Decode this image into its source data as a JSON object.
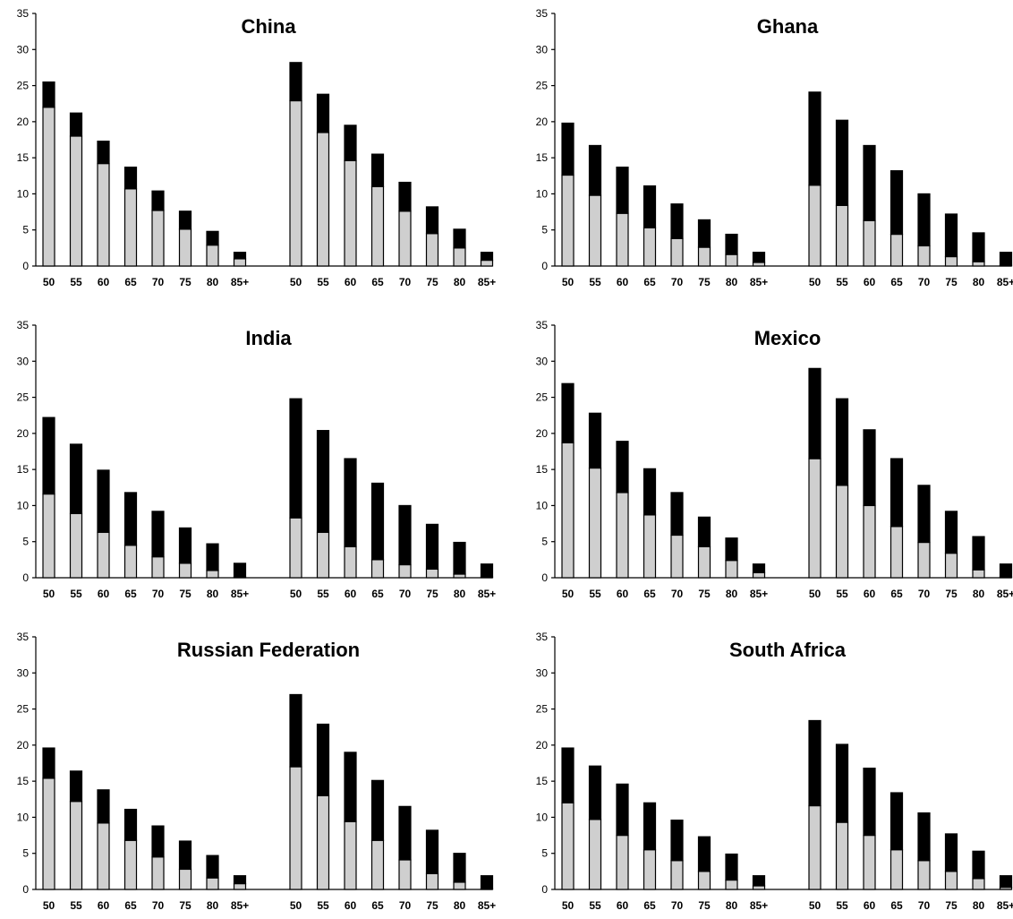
{
  "chart_data": [
    {
      "type": "bar",
      "stacked": true,
      "title": "China",
      "ylim": [
        0,
        35
      ],
      "yticks": [
        0,
        5,
        10,
        15,
        20,
        25,
        30,
        35
      ],
      "groups": [
        {
          "categories": [
            "50",
            "55",
            "60",
            "65",
            "70",
            "75",
            "80",
            "85+"
          ],
          "series": [
            {
              "values": [
                22,
                18,
                14.2,
                10.7,
                7.7,
                5.1,
                2.9,
                1.0
              ],
              "color": "#cfcfcf"
            },
            {
              "values": [
                3.5,
                3.2,
                3.1,
                3.0,
                2.7,
                2.5,
                1.9,
                0.9
              ],
              "color": "#000000"
            }
          ]
        },
        {
          "categories": [
            "50",
            "55",
            "60",
            "65",
            "70",
            "75",
            "80",
            "85+"
          ],
          "series": [
            {
              "values": [
                22.9,
                18.5,
                14.6,
                11.0,
                7.6,
                4.5,
                2.5,
                0.8
              ],
              "color": "#cfcfcf"
            },
            {
              "values": [
                5.3,
                5.3,
                4.9,
                4.5,
                4.0,
                3.7,
                2.6,
                1.1
              ],
              "color": "#000000"
            }
          ]
        }
      ]
    },
    {
      "type": "bar",
      "stacked": true,
      "title": "Ghana",
      "ylim": [
        0,
        35
      ],
      "yticks": [
        0,
        5,
        10,
        15,
        20,
        25,
        30,
        35
      ],
      "groups": [
        {
          "categories": [
            "50",
            "55",
            "60",
            "65",
            "70",
            "75",
            "80",
            "85+"
          ],
          "series": [
            {
              "values": [
                12.6,
                9.8,
                7.3,
                5.3,
                3.8,
                2.6,
                1.6,
                0.5
              ],
              "color": "#cfcfcf"
            },
            {
              "values": [
                7.2,
                6.9,
                6.4,
                5.8,
                4.8,
                3.8,
                2.8,
                1.4
              ],
              "color": "#000000"
            }
          ]
        },
        {
          "categories": [
            "50",
            "55",
            "60",
            "65",
            "70",
            "75",
            "80",
            "85+"
          ],
          "series": [
            {
              "values": [
                11.2,
                8.4,
                6.3,
                4.4,
                2.8,
                1.3,
                0.6,
                0.1
              ],
              "color": "#cfcfcf"
            },
            {
              "values": [
                12.9,
                11.8,
                10.4,
                8.8,
                7.2,
                5.9,
                4.0,
                1.8
              ],
              "color": "#000000"
            }
          ]
        }
      ]
    },
    {
      "type": "bar",
      "stacked": true,
      "title": "India",
      "ylim": [
        0,
        35
      ],
      "yticks": [
        0,
        5,
        10,
        15,
        20,
        25,
        30,
        35
      ],
      "groups": [
        {
          "categories": [
            "50",
            "55",
            "60",
            "65",
            "70",
            "75",
            "80",
            "85+"
          ],
          "series": [
            {
              "values": [
                11.6,
                8.9,
                6.3,
                4.5,
                2.9,
                2.0,
                1.0,
                0.1
              ],
              "color": "#cfcfcf"
            },
            {
              "values": [
                10.6,
                9.6,
                8.6,
                7.3,
                6.3,
                4.9,
                3.7,
                1.9
              ],
              "color": "#000000"
            }
          ]
        },
        {
          "categories": [
            "50",
            "55",
            "60",
            "65",
            "70",
            "75",
            "80",
            "85+"
          ],
          "series": [
            {
              "values": [
                8.3,
                6.3,
                4.3,
                2.5,
                1.8,
                1.2,
                0.5,
                0.1
              ],
              "color": "#cfcfcf"
            },
            {
              "values": [
                16.5,
                14.1,
                12.2,
                10.6,
                8.2,
                6.2,
                4.4,
                1.8
              ],
              "color": "#000000"
            }
          ]
        }
      ]
    },
    {
      "type": "bar",
      "stacked": true,
      "title": "Mexico",
      "ylim": [
        0,
        35
      ],
      "yticks": [
        0,
        5,
        10,
        15,
        20,
        25,
        30,
        35
      ],
      "groups": [
        {
          "categories": [
            "50",
            "55",
            "60",
            "65",
            "70",
            "75",
            "80",
            "85+"
          ],
          "series": [
            {
              "values": [
                18.7,
                15.2,
                11.8,
                8.7,
                5.9,
                4.3,
                2.4,
                0.7
              ],
              "color": "#cfcfcf"
            },
            {
              "values": [
                8.2,
                7.6,
                7.1,
                6.4,
                5.9,
                4.1,
                3.1,
                1.2
              ],
              "color": "#000000"
            }
          ]
        },
        {
          "categories": [
            "50",
            "55",
            "60",
            "65",
            "70",
            "75",
            "80",
            "85+"
          ],
          "series": [
            {
              "values": [
                16.5,
                12.8,
                10.0,
                7.1,
                4.9,
                3.4,
                1.1,
                0.1
              ],
              "color": "#cfcfcf"
            },
            {
              "values": [
                12.5,
                12.0,
                10.5,
                9.4,
                7.9,
                5.8,
                4.6,
                1.8
              ],
              "color": "#000000"
            }
          ]
        }
      ]
    },
    {
      "type": "bar",
      "stacked": true,
      "title": "Russian Federation",
      "ylim": [
        0,
        35
      ],
      "yticks": [
        0,
        5,
        10,
        15,
        20,
        25,
        30,
        35
      ],
      "groups": [
        {
          "categories": [
            "50",
            "55",
            "60",
            "65",
            "70",
            "75",
            "80",
            "85+"
          ],
          "series": [
            {
              "values": [
                15.4,
                12.2,
                9.2,
                6.8,
                4.5,
                2.8,
                1.6,
                0.8
              ],
              "color": "#cfcfcf"
            },
            {
              "values": [
                4.2,
                4.2,
                4.6,
                4.3,
                4.3,
                3.9,
                3.1,
                1.1
              ],
              "color": "#000000"
            }
          ]
        },
        {
          "categories": [
            "50",
            "55",
            "60",
            "65",
            "70",
            "75",
            "80",
            "85+"
          ],
          "series": [
            {
              "values": [
                17.0,
                13.0,
                9.4,
                6.8,
                4.1,
                2.2,
                1.0,
                0.1
              ],
              "color": "#cfcfcf"
            },
            {
              "values": [
                10.0,
                9.9,
                9.6,
                8.3,
                7.4,
                6.0,
                4.0,
                1.8
              ],
              "color": "#000000"
            }
          ]
        }
      ]
    },
    {
      "type": "bar",
      "stacked": true,
      "title": "South Africa",
      "ylim": [
        0,
        35
      ],
      "yticks": [
        0,
        5,
        10,
        15,
        20,
        25,
        30,
        35
      ],
      "groups": [
        {
          "categories": [
            "50",
            "55",
            "60",
            "65",
            "70",
            "75",
            "80",
            "85+"
          ],
          "series": [
            {
              "values": [
                12.0,
                9.7,
                7.5,
                5.5,
                4.0,
                2.5,
                1.3,
                0.5
              ],
              "color": "#cfcfcf"
            },
            {
              "values": [
                7.6,
                7.4,
                7.1,
                6.5,
                5.6,
                4.8,
                3.6,
                1.4
              ],
              "color": "#000000"
            }
          ]
        },
        {
          "categories": [
            "50",
            "55",
            "60",
            "65",
            "70",
            "75",
            "80",
            "85+"
          ],
          "series": [
            {
              "values": [
                11.6,
                9.3,
                7.5,
                5.5,
                4.0,
                2.5,
                1.5,
                0.3
              ],
              "color": "#cfcfcf"
            },
            {
              "values": [
                11.8,
                10.8,
                9.3,
                7.9,
                6.6,
                5.2,
                3.8,
                1.6
              ],
              "color": "#000000"
            }
          ]
        }
      ]
    }
  ]
}
